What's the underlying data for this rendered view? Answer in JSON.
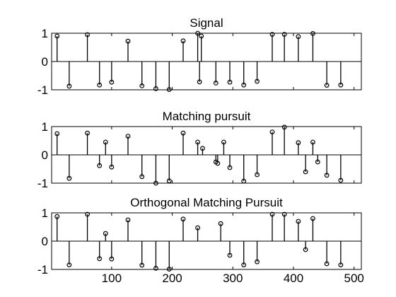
{
  "figure": {
    "background": "#ffffff",
    "line_color": "#000000"
  },
  "chart_data": [
    {
      "type": "stem",
      "title": "Signal",
      "xlim": [
        1,
        512
      ],
      "ylim": [
        -1,
        1
      ],
      "xticks": [
        100,
        200,
        300,
        400,
        500
      ],
      "yticks": [
        -1,
        0,
        1
      ],
      "xticklabels": [],
      "yticklabels": [
        "-1",
        "0",
        "1"
      ],
      "points": [
        [
          10,
          0.9
        ],
        [
          30,
          -0.87
        ],
        [
          60,
          0.95
        ],
        [
          80,
          -0.83
        ],
        [
          100,
          -0.73
        ],
        [
          127,
          0.72
        ],
        [
          150,
          -0.86
        ],
        [
          173,
          -0.96
        ],
        [
          195,
          -0.99
        ],
        [
          218,
          0.73
        ],
        [
          242,
          1.0
        ],
        [
          245,
          -0.72
        ],
        [
          248,
          0.9
        ],
        [
          272,
          -0.76
        ],
        [
          295,
          -0.73
        ],
        [
          318,
          -0.83
        ],
        [
          340,
          -0.7
        ],
        [
          365,
          0.96
        ],
        [
          385,
          0.96
        ],
        [
          408,
          0.88
        ],
        [
          432,
          0.99
        ],
        [
          455,
          -0.84
        ],
        [
          478,
          -0.83
        ]
      ]
    },
    {
      "type": "stem",
      "title": "Matching pursuit",
      "xlim": [
        1,
        512
      ],
      "ylim": [
        -1,
        1
      ],
      "xticks": [
        100,
        200,
        300,
        400,
        500
      ],
      "yticks": [
        -1,
        0,
        1
      ],
      "xticklabels": [],
      "yticklabels": [
        "-1",
        "0",
        "1"
      ],
      "points": [
        [
          10,
          0.75
        ],
        [
          30,
          -0.83
        ],
        [
          60,
          0.77
        ],
        [
          80,
          -0.38
        ],
        [
          90,
          0.45
        ],
        [
          100,
          -0.43
        ],
        [
          127,
          0.66
        ],
        [
          150,
          -0.77
        ],
        [
          173,
          -1.0
        ],
        [
          195,
          -0.92
        ],
        [
          218,
          0.77
        ],
        [
          242,
          0.45
        ],
        [
          250,
          0.23
        ],
        [
          272,
          -0.25
        ],
        [
          275,
          -0.3
        ],
        [
          285,
          0.45
        ],
        [
          295,
          -0.45
        ],
        [
          318,
          -0.93
        ],
        [
          340,
          -0.7
        ],
        [
          365,
          0.81
        ],
        [
          385,
          0.98
        ],
        [
          408,
          0.43
        ],
        [
          420,
          -0.6
        ],
        [
          432,
          0.45
        ],
        [
          440,
          -0.25
        ],
        [
          455,
          -0.72
        ],
        [
          478,
          -0.9
        ]
      ]
    },
    {
      "type": "stem",
      "title": "Orthogonal Matching Pursuit",
      "xlim": [
        1,
        512
      ],
      "ylim": [
        -1,
        1
      ],
      "xticks": [
        100,
        200,
        300,
        400,
        500
      ],
      "yticks": [
        -1,
        0,
        1
      ],
      "xticklabels": [
        "100",
        "200",
        "300",
        "400",
        "500"
      ],
      "yticklabels": [
        "-1",
        "0",
        "1"
      ],
      "points": [
        [
          10,
          0.87
        ],
        [
          30,
          -0.84
        ],
        [
          60,
          0.95
        ],
        [
          80,
          -0.62
        ],
        [
          90,
          0.27
        ],
        [
          100,
          -0.63
        ],
        [
          127,
          0.75
        ],
        [
          150,
          -0.85
        ],
        [
          173,
          -0.96
        ],
        [
          195,
          -0.99
        ],
        [
          218,
          0.78
        ],
        [
          242,
          0.47
        ],
        [
          280,
          0.62
        ],
        [
          295,
          -0.5
        ],
        [
          318,
          -0.84
        ],
        [
          340,
          -0.73
        ],
        [
          365,
          0.95
        ],
        [
          385,
          0.95
        ],
        [
          408,
          0.7
        ],
        [
          420,
          -0.3
        ],
        [
          432,
          0.8
        ],
        [
          455,
          -0.8
        ],
        [
          478,
          -0.84
        ]
      ]
    }
  ]
}
